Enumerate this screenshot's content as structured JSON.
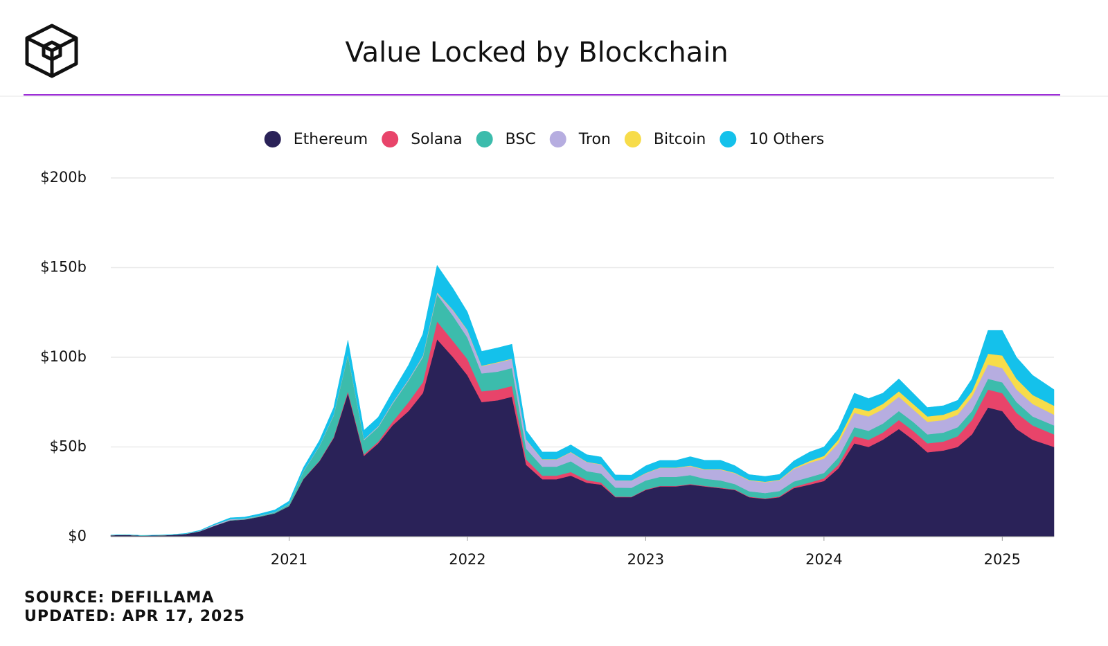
{
  "chart_data": {
    "type": "stacked-area",
    "title": "Value Locked by Blockchain",
    "source": "SOURCE: DEFILLAMA",
    "updated": "UPDATED: APR 17, 2025",
    "x": [
      2020,
      2020.08,
      2020.17,
      2020.25,
      2020.33,
      2020.42,
      2020.5,
      2020.58,
      2020.67,
      2020.75,
      2020.83,
      2020.92,
      2021,
      2021.08,
      2021.17,
      2021.25,
      2021.33,
      2021.42,
      2021.5,
      2021.58,
      2021.67,
      2021.75,
      2021.83,
      2021.92,
      2022,
      2022.08,
      2022.17,
      2022.25,
      2022.33,
      2022.42,
      2022.5,
      2022.58,
      2022.67,
      2022.75,
      2022.83,
      2022.92,
      2023,
      2023.08,
      2023.17,
      2023.25,
      2023.33,
      2023.42,
      2023.5,
      2023.58,
      2023.67,
      2023.75,
      2023.83,
      2023.92,
      2024,
      2024.08,
      2024.17,
      2024.25,
      2024.33,
      2024.42,
      2024.5,
      2024.58,
      2024.67,
      2024.75,
      2024.83,
      2024.92,
      2025,
      2025.08,
      2025.17,
      2025.29
    ],
    "xlim": [
      2020,
      2025.29
    ],
    "xticks": [
      2021,
      2022,
      2023,
      2024,
      2025
    ],
    "ylim": [
      0,
      200
    ],
    "yticks": [
      {
        "value": 0,
        "label": "$0"
      },
      {
        "value": 50,
        "label": "$50b"
      },
      {
        "value": 100,
        "label": "$100b"
      },
      {
        "value": 150,
        "label": "$150b"
      },
      {
        "value": 200,
        "label": "$200b"
      }
    ],
    "grid": true,
    "series": [
      {
        "name": "Ethereum",
        "color": "#2a2258",
        "values": [
          0.8,
          1,
          0.6,
          0.7,
          0.9,
          1.5,
          3,
          6,
          9,
          9.5,
          11,
          13,
          17,
          32,
          42,
          55,
          80,
          45,
          52,
          62,
          70,
          80,
          110,
          100,
          90,
          75,
          76,
          78,
          40,
          32,
          32,
          34,
          30,
          29,
          22,
          22,
          26,
          28,
          28,
          29,
          28,
          27,
          26,
          22,
          21,
          22,
          27,
          29,
          31,
          38,
          52,
          50,
          54,
          60,
          54,
          47,
          48,
          50,
          57,
          72,
          70,
          60,
          54,
          50
        ]
      },
      {
        "name": "Solana",
        "color": "#e8446a",
        "values": [
          0,
          0,
          0,
          0,
          0,
          0,
          0,
          0,
          0,
          0,
          0,
          0,
          0.1,
          0.2,
          0.3,
          0.5,
          1,
          0.8,
          1,
          2,
          5,
          6,
          10,
          9,
          9,
          6,
          6,
          6,
          3,
          2,
          2,
          2,
          1.5,
          1.2,
          0.3,
          0.2,
          0.3,
          0.3,
          0.3,
          0.3,
          0.3,
          0.3,
          0.3,
          0.3,
          0.3,
          0.4,
          0.7,
          1.2,
          1.5,
          2,
          4,
          4,
          4,
          5,
          5,
          5,
          5,
          6,
          8,
          10,
          10,
          9,
          8,
          7
        ]
      },
      {
        "name": "BSC",
        "color": "#3cbcac",
        "values": [
          0,
          0,
          0,
          0,
          0,
          0,
          0,
          0,
          0.2,
          0.3,
          0.4,
          0.5,
          1,
          4,
          8,
          12,
          20,
          8,
          8,
          10,
          12,
          14,
          15,
          14,
          12,
          10,
          10,
          10,
          6,
          5,
          5,
          6,
          5,
          5,
          5,
          5,
          5,
          5,
          5,
          5,
          4,
          4,
          3,
          3,
          3,
          3,
          3,
          3,
          3,
          4,
          5,
          5,
          5,
          5,
          5,
          5,
          5,
          5,
          5,
          6,
          6,
          6,
          5,
          5
        ]
      },
      {
        "name": "Tron",
        "color": "#b6ade0",
        "values": [
          0,
          0,
          0,
          0,
          0,
          0.1,
          0.2,
          0.5,
          0.5,
          0.3,
          0.2,
          0.2,
          0.2,
          0.3,
          0.3,
          0.3,
          0.4,
          0.4,
          0.5,
          0.6,
          0.6,
          0.7,
          1,
          3,
          4,
          4,
          5,
          5,
          5,
          4,
          4,
          5,
          5,
          5,
          4,
          4,
          4,
          5,
          5,
          5,
          5,
          6,
          6,
          6,
          6,
          6,
          7,
          8,
          8,
          8,
          8,
          8,
          8,
          8,
          7,
          7,
          7,
          7,
          8,
          8,
          8,
          7,
          7,
          6
        ]
      },
      {
        "name": "Bitcoin",
        "color": "#f7dc4a",
        "values": [
          0,
          0,
          0,
          0,
          0,
          0,
          0,
          0,
          0,
          0,
          0,
          0,
          0,
          0,
          0,
          0.1,
          0.1,
          0.1,
          0.1,
          0.1,
          0.1,
          0.2,
          0.3,
          0.3,
          0.3,
          0.3,
          0.3,
          0.3,
          0.2,
          0.2,
          0.2,
          0.2,
          0.2,
          0.2,
          0.1,
          0.1,
          0.2,
          0.2,
          0.2,
          0.3,
          0.3,
          0.3,
          0.3,
          0.3,
          0.3,
          0.3,
          0.5,
          1,
          1.5,
          2,
          3,
          3,
          3,
          3,
          3,
          3,
          3,
          3,
          3,
          6,
          7,
          6,
          5,
          5
        ]
      },
      {
        "name": "10 Others",
        "color": "#14c1eb",
        "values": [
          0.1,
          0.1,
          0.1,
          0.1,
          0.2,
          0.2,
          0.3,
          0.5,
          0.8,
          0.8,
          1,
          1.2,
          1.5,
          2,
          3,
          4,
          8,
          5,
          5,
          6,
          8,
          12,
          15,
          12,
          10,
          8,
          8,
          8,
          5,
          4,
          4,
          4,
          4,
          4,
          3,
          3,
          4,
          4,
          4,
          5,
          5,
          5,
          4,
          3,
          3,
          3,
          4,
          5,
          5,
          6,
          8,
          7,
          6,
          7,
          6,
          5,
          5,
          5,
          7,
          13,
          14,
          12,
          11,
          9
        ]
      }
    ]
  }
}
